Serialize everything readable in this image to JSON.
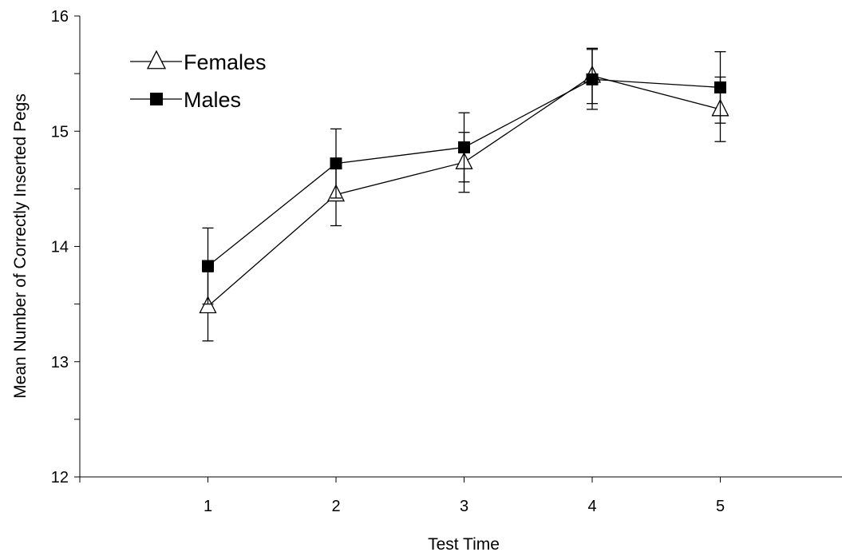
{
  "chart_data": {
    "type": "line",
    "xlabel": "Test Time",
    "ylabel": "Mean Number of Correctly Inserted Pegs",
    "x": [
      1,
      2,
      3,
      4,
      5
    ],
    "x_ticks": [
      "1",
      "2",
      "3",
      "4",
      "5"
    ],
    "xlim": [
      0,
      6
    ],
    "ylim": [
      12,
      16
    ],
    "y_ticks": [
      12,
      13,
      14,
      15,
      16
    ],
    "y_minor_step": 0.5,
    "grid": false,
    "legend": "top-left",
    "series": [
      {
        "name": "Females",
        "marker": "open-triangle",
        "color": "#000000",
        "values": [
          13.48,
          14.45,
          14.73,
          15.48,
          15.19
        ],
        "error": [
          0.3,
          0.27,
          0.26,
          0.24,
          0.28
        ]
      },
      {
        "name": "Males",
        "marker": "filled-square",
        "color": "#000000",
        "values": [
          13.83,
          14.72,
          14.86,
          15.45,
          15.38
        ],
        "error": [
          0.33,
          0.3,
          0.3,
          0.26,
          0.31
        ]
      }
    ]
  }
}
